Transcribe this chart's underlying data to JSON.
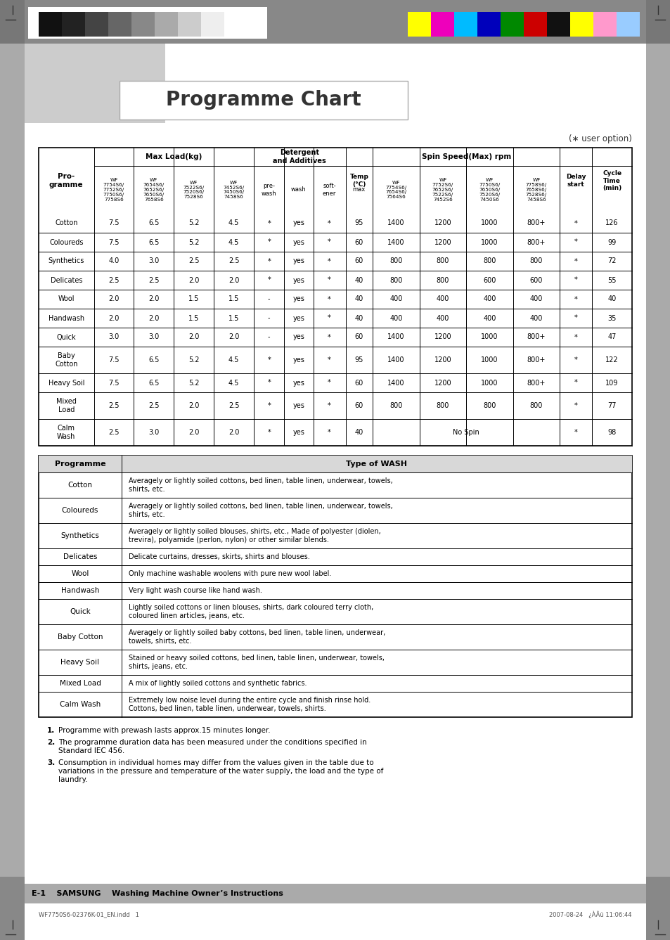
{
  "title": "Programme Chart",
  "user_option_note": "(∗ user option)",
  "programmes": [
    {
      "name": "Cotton",
      "load1": "7.5",
      "load2": "6.5",
      "load3": "5.2",
      "load4": "4.5",
      "prewash": "*",
      "wash": "yes",
      "softener": "*",
      "temp": "95",
      "spin1": "1400",
      "spin2": "1200",
      "spin3": "1000",
      "spin4": "800+",
      "delay": "*",
      "cycle": "126"
    },
    {
      "name": "Coloureds",
      "load1": "7.5",
      "load2": "6.5",
      "load3": "5.2",
      "load4": "4.5",
      "prewash": "*",
      "wash": "yes",
      "softener": "*",
      "temp": "60",
      "spin1": "1400",
      "spin2": "1200",
      "spin3": "1000",
      "spin4": "800+",
      "delay": "*",
      "cycle": "99"
    },
    {
      "name": "Synthetics",
      "load1": "4.0",
      "load2": "3.0",
      "load3": "2.5",
      "load4": "2.5",
      "prewash": "*",
      "wash": "yes",
      "softener": "*",
      "temp": "60",
      "spin1": "800",
      "spin2": "800",
      "spin3": "800",
      "spin4": "800",
      "delay": "*",
      "cycle": "72"
    },
    {
      "name": "Delicates",
      "load1": "2.5",
      "load2": "2.5",
      "load3": "2.0",
      "load4": "2.0",
      "prewash": "*",
      "wash": "yes",
      "softener": "*",
      "temp": "40",
      "spin1": "800",
      "spin2": "800",
      "spin3": "600",
      "spin4": "600",
      "delay": "*",
      "cycle": "55"
    },
    {
      "name": "Wool",
      "load1": "2.0",
      "load2": "2.0",
      "load3": "1.5",
      "load4": "1.5",
      "prewash": "-",
      "wash": "yes",
      "softener": "*",
      "temp": "40",
      "spin1": "400",
      "spin2": "400",
      "spin3": "400",
      "spin4": "400",
      "delay": "*",
      "cycle": "40"
    },
    {
      "name": "Handwash",
      "load1": "2.0",
      "load2": "2.0",
      "load3": "1.5",
      "load4": "1.5",
      "prewash": "-",
      "wash": "yes",
      "softener": "*",
      "temp": "40",
      "spin1": "400",
      "spin2": "400",
      "spin3": "400",
      "spin4": "400",
      "delay": "*",
      "cycle": "35"
    },
    {
      "name": "Quick",
      "load1": "3.0",
      "load2": "3.0",
      "load3": "2.0",
      "load4": "2.0",
      "prewash": "-",
      "wash": "yes",
      "softener": "*",
      "temp": "60",
      "spin1": "1400",
      "spin2": "1200",
      "spin3": "1000",
      "spin4": "800+",
      "delay": "*",
      "cycle": "47"
    },
    {
      "name": "Baby\nCotton",
      "load1": "7.5",
      "load2": "6.5",
      "load3": "5.2",
      "load4": "4.5",
      "prewash": "*",
      "wash": "yes",
      "softener": "*",
      "temp": "95",
      "spin1": "1400",
      "spin2": "1200",
      "spin3": "1000",
      "spin4": "800+",
      "delay": "*",
      "cycle": "122"
    },
    {
      "name": "Heavy Soil",
      "load1": "7.5",
      "load2": "6.5",
      "load3": "5.2",
      "load4": "4.5",
      "prewash": "*",
      "wash": "yes",
      "softener": "*",
      "temp": "60",
      "spin1": "1400",
      "spin2": "1200",
      "spin3": "1000",
      "spin4": "800+",
      "delay": "*",
      "cycle": "109"
    },
    {
      "name": "Mixed\nLoad",
      "load1": "2.5",
      "load2": "2.5",
      "load3": "2.0",
      "load4": "2.5",
      "prewash": "*",
      "wash": "yes",
      "softener": "*",
      "temp": "60",
      "spin1": "800",
      "spin2": "800",
      "spin3": "800",
      "spin4": "800",
      "delay": "*",
      "cycle": "77"
    },
    {
      "name": "Calm\nWash",
      "load1": "2.5",
      "load2": "3.0",
      "load3": "2.0",
      "load4": "2.0",
      "prewash": "*",
      "wash": "yes",
      "softener": "*",
      "temp": "40",
      "spin1": "No Spin",
      "spin2": "",
      "spin3": "",
      "spin4": "",
      "delay": "*",
      "cycle": "98"
    }
  ],
  "load_model_headers": [
    "WF\n7754S6/\n7752S6/\n7750S6/\n7758S6",
    "WF\n7654S6/\n7652S6/\n7650S6/\n7658S6",
    "WF\n7522S6/\n7520S6/\n7528S6",
    "WF\n7452S6/\n7450S6/\n7458S6"
  ],
  "spin_model_headers": [
    "WF\n7754S6/\n7654S6/\n7564S6",
    "WF\n7752S6/\n7652S6/\n7522S6/\n7452S6",
    "WF\n7750S6/\n7650S6/\n7520S6/\n7450S6",
    "WF\n7758S6/\n7658S6/\n7528S6/\n7458S6"
  ],
  "wash_types": [
    {
      "prog": "Cotton",
      "desc": "Averagely or lightly soiled cottons, bed linen, table linen, underwear, towels,\nshirts, etc."
    },
    {
      "prog": "Coloureds",
      "desc": "Averagely or lightly soiled cottons, bed linen, table linen, underwear, towels,\nshirts, etc."
    },
    {
      "prog": "Synthetics",
      "desc": "Averagely or lightly soiled blouses, shirts, etc., Made of polyester (diolen,\ntrevira), polyamide (perlon, nylon) or other similar blends."
    },
    {
      "prog": "Delicates",
      "desc": "Delicate curtains, dresses, skirts, shirts and blouses."
    },
    {
      "prog": "Wool",
      "desc": "Only machine washable woolens with pure new wool label."
    },
    {
      "prog": "Handwash",
      "desc": "Very light wash course like hand wash."
    },
    {
      "prog": "Quick",
      "desc": "Lightly soiled cottons or linen blouses, shirts, dark coloured terry cloth,\ncoloured linen articles, jeans, etc."
    },
    {
      "prog": "Baby Cotton",
      "desc": "Averagely or lightly soiled baby cottons, bed linen, table linen, underwear,\ntowels, shirts, etc."
    },
    {
      "prog": "Heavy Soil",
      "desc": "Stained or heavy soiled cottons, bed linen, table linen, underwear, towels,\nshirts, jeans, etc."
    },
    {
      "prog": "Mixed Load",
      "desc": "A mix of lightly soiled cottons and synthetic fabrics."
    },
    {
      "prog": "Calm Wash",
      "desc": "Extremely low noise level during the entire cycle and finish rinse hold.\nCottons, bed linen, table linen, underwear, towels, shirts."
    }
  ],
  "footnotes": [
    "Programme with prewash lasts approx.15 minutes longer.",
    "The programme duration data has been measured under the conditions specified in Standard IEC 456.",
    "Consumption in individual homes may differ from the values given in the table due to variations in the pressure and temperature of the water supply, the load and the type of laundry."
  ],
  "footer_left": "E-1    SAMSUNG    Washing Machine Owner’s Instructions",
  "page_footer_left": "WF7750S6-02376K-01_EN.indd   1",
  "page_footer_right": "2007-08-24   ¿ÀÂü 11:06:44",
  "gray_strip_colors": [
    "#1a1a1a",
    "#3a3a3a",
    "#555555",
    "#777777",
    "#999999",
    "#bbbbbb",
    "#dddddd",
    "#f0f0f0"
  ],
  "color_strip_colors": [
    "#ffff00",
    "#ff00cc",
    "#00ccff",
    "#0000cc",
    "#009900",
    "#cc0000",
    "#000000",
    "#ffff00",
    "#ff88cc",
    "#88ccff"
  ],
  "sidebar_color": "#888888",
  "sidebar_light": "#bbbbbb",
  "footer_bar_color": "#999999"
}
